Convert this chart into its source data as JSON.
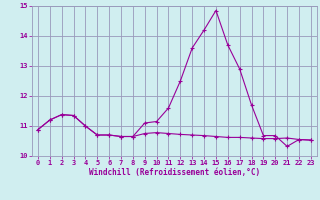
{
  "xlabel": "Windchill (Refroidissement éolien,°C)",
  "xlim": [
    -0.5,
    23.5
  ],
  "ylim": [
    10,
    15
  ],
  "yticks": [
    10,
    11,
    12,
    13,
    14,
    15
  ],
  "xticks": [
    0,
    1,
    2,
    3,
    4,
    5,
    6,
    7,
    8,
    9,
    10,
    11,
    12,
    13,
    14,
    15,
    16,
    17,
    18,
    19,
    20,
    21,
    22,
    23
  ],
  "background_color": "#d0eef0",
  "grid_color": "#9999bb",
  "line_color": "#990099",
  "line1_x": [
    0,
    1,
    2,
    3,
    4,
    5,
    6,
    7,
    8,
    9,
    10,
    11,
    12,
    13,
    14,
    15,
    16,
    17,
    18,
    19,
    20,
    21,
    22,
    23
  ],
  "line1_y": [
    10.88,
    11.2,
    11.38,
    11.35,
    11.0,
    10.7,
    10.7,
    10.65,
    10.65,
    10.75,
    10.78,
    10.75,
    10.72,
    10.7,
    10.68,
    10.65,
    10.62,
    10.62,
    10.6,
    10.58,
    10.58,
    10.6,
    10.55,
    10.53
  ],
  "line2_x": [
    0,
    1,
    2,
    3,
    4,
    5,
    6,
    7,
    8,
    9,
    10,
    11,
    12,
    13,
    14,
    15,
    16,
    17,
    18,
    19,
    20,
    21,
    22,
    23
  ],
  "line2_y": [
    10.88,
    11.2,
    11.38,
    11.35,
    11.0,
    10.7,
    10.7,
    10.65,
    10.65,
    11.1,
    11.15,
    11.6,
    12.5,
    13.6,
    14.2,
    14.85,
    13.7,
    12.9,
    11.7,
    10.68,
    10.68,
    10.32,
    10.55,
    10.53
  ]
}
